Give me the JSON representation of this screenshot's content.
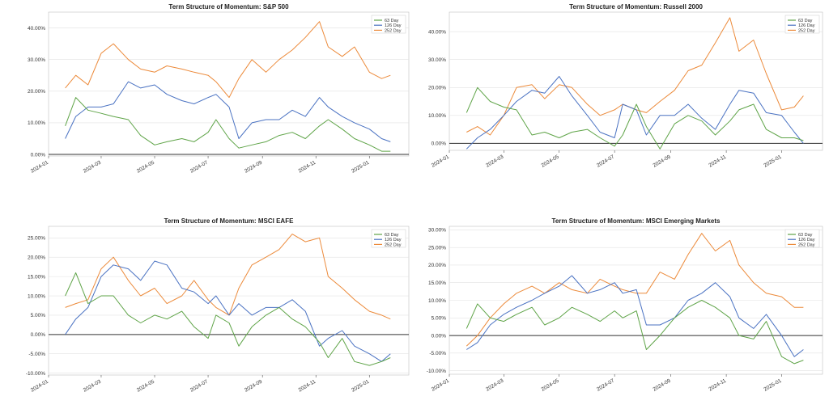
{
  "figure": {
    "colors": {
      "s63": "#5fa448",
      "s126": "#4a72c2",
      "s252": "#ec8a3a",
      "zero": "#333333",
      "grid": "#e2e2e2"
    }
  },
  "chart_data": [
    {
      "type": "line",
      "title": "Term Structure of Momentum: S&P 500",
      "x_tick_labels": [
        "2024-01",
        "2024-03",
        "2024-05",
        "2024-07",
        "2024-09",
        "2024-11",
        "2025-01"
      ],
      "y_tick_labels": [
        "0.00%",
        "10.00%",
        "20.00%",
        "30.00%",
        "40.00%"
      ],
      "ylim": [
        -0.5,
        45
      ],
      "grid": true,
      "legend_position": "top-right",
      "series": [
        {
          "name": "63 Day",
          "key": "s63",
          "x": [
            "2024-01-20",
            "2024-02-01",
            "2024-02-15",
            "2024-03-01",
            "2024-03-15",
            "2024-04-01",
            "2024-04-15",
            "2024-05-01",
            "2024-05-15",
            "2024-06-01",
            "2024-06-15",
            "2024-07-01",
            "2024-07-10",
            "2024-07-25",
            "2024-08-05",
            "2024-08-20",
            "2024-09-05",
            "2024-09-20",
            "2024-10-05",
            "2024-10-20",
            "2024-11-05",
            "2024-11-15",
            "2024-12-01",
            "2024-12-15",
            "2025-01-01",
            "2025-01-15",
            "2025-01-25"
          ],
          "values": [
            9,
            18,
            14,
            13,
            12,
            11,
            6,
            3,
            4,
            5,
            4,
            7,
            11,
            5,
            2,
            3,
            4,
            6,
            7,
            5,
            9,
            11,
            8,
            5,
            3,
            1,
            1
          ]
        },
        {
          "name": "126 Day",
          "key": "s126",
          "x": [
            "2024-01-20",
            "2024-02-01",
            "2024-02-15",
            "2024-03-01",
            "2024-03-15",
            "2024-04-01",
            "2024-04-15",
            "2024-05-01",
            "2024-05-15",
            "2024-06-01",
            "2024-06-15",
            "2024-07-01",
            "2024-07-10",
            "2024-07-25",
            "2024-08-05",
            "2024-08-20",
            "2024-09-05",
            "2024-09-20",
            "2024-10-05",
            "2024-10-20",
            "2024-11-05",
            "2024-11-15",
            "2024-12-01",
            "2024-12-15",
            "2025-01-01",
            "2025-01-15",
            "2025-01-25"
          ],
          "values": [
            5,
            12,
            15,
            15,
            16,
            23,
            21,
            22,
            19,
            17,
            16,
            18,
            19,
            15,
            5,
            10,
            11,
            11,
            14,
            12,
            18,
            15,
            12,
            10,
            8,
            5,
            4
          ]
        },
        {
          "name": "252 Day",
          "key": "s252",
          "x": [
            "2024-01-20",
            "2024-02-01",
            "2024-02-15",
            "2024-03-01",
            "2024-03-15",
            "2024-04-01",
            "2024-04-15",
            "2024-05-01",
            "2024-05-15",
            "2024-06-01",
            "2024-06-15",
            "2024-07-01",
            "2024-07-10",
            "2024-07-25",
            "2024-08-05",
            "2024-08-20",
            "2024-09-05",
            "2024-09-20",
            "2024-10-05",
            "2024-10-20",
            "2024-11-05",
            "2024-11-15",
            "2024-12-01",
            "2024-12-15",
            "2025-01-01",
            "2025-01-15",
            "2025-01-25"
          ],
          "values": [
            21,
            25,
            22,
            32,
            35,
            30,
            27,
            26,
            28,
            27,
            26,
            25,
            23,
            18,
            24,
            30,
            26,
            30,
            33,
            37,
            42,
            34,
            31,
            34,
            26,
            24,
            25
          ]
        }
      ]
    },
    {
      "type": "line",
      "title": "Term Structure of Momentum: Russell 2000",
      "x_tick_labels": [
        "2024-01",
        "2024-03",
        "2024-05",
        "2024-07",
        "2024-09",
        "2024-11",
        "2025-01"
      ],
      "y_tick_labels": [
        "0.00%",
        "10.00%",
        "20.00%",
        "30.00%",
        "40.00%"
      ],
      "ylim": [
        -2.5,
        47
      ],
      "grid": true,
      "legend_position": "top-right",
      "series": [
        {
          "name": "63 Day",
          "key": "s63",
          "x": [
            "2024-01-20",
            "2024-02-01",
            "2024-02-15",
            "2024-03-01",
            "2024-03-15",
            "2024-04-01",
            "2024-04-15",
            "2024-05-01",
            "2024-05-15",
            "2024-06-01",
            "2024-06-15",
            "2024-07-01",
            "2024-07-10",
            "2024-07-25",
            "2024-08-05",
            "2024-08-20",
            "2024-09-05",
            "2024-09-20",
            "2024-10-05",
            "2024-10-20",
            "2024-11-05",
            "2024-11-15",
            "2024-12-01",
            "2024-12-15",
            "2025-01-01",
            "2025-01-15",
            "2025-01-25"
          ],
          "values": [
            11,
            20,
            15,
            13,
            12,
            3,
            4,
            2,
            4,
            5,
            2,
            -1,
            3,
            14,
            6,
            -2,
            7,
            10,
            8,
            3,
            8,
            12,
            14,
            5,
            2,
            2,
            1
          ]
        },
        {
          "name": "126 Day",
          "key": "s126",
          "x": [
            "2024-01-20",
            "2024-02-01",
            "2024-02-15",
            "2024-03-01",
            "2024-03-15",
            "2024-04-01",
            "2024-04-15",
            "2024-05-01",
            "2024-05-15",
            "2024-06-01",
            "2024-06-15",
            "2024-07-01",
            "2024-07-10",
            "2024-07-25",
            "2024-08-05",
            "2024-08-20",
            "2024-09-05",
            "2024-09-20",
            "2024-10-05",
            "2024-10-20",
            "2024-11-05",
            "2024-11-15",
            "2024-12-01",
            "2024-12-15",
            "2025-01-01",
            "2025-01-15",
            "2025-01-25"
          ],
          "values": [
            -2,
            2,
            5,
            10,
            15,
            19,
            18,
            24,
            17,
            10,
            4,
            2,
            14,
            12,
            3,
            10,
            10,
            14,
            9,
            5,
            14,
            19,
            18,
            11,
            10,
            4,
            0
          ]
        },
        {
          "name": "252 Day",
          "key": "s252",
          "x": [
            "2024-01-20",
            "2024-02-01",
            "2024-02-15",
            "2024-03-01",
            "2024-03-15",
            "2024-04-01",
            "2024-04-15",
            "2024-05-01",
            "2024-05-15",
            "2024-06-01",
            "2024-06-15",
            "2024-07-01",
            "2024-07-10",
            "2024-07-25",
            "2024-08-05",
            "2024-08-20",
            "2024-09-05",
            "2024-09-20",
            "2024-10-05",
            "2024-10-20",
            "2024-11-05",
            "2024-11-15",
            "2024-12-01",
            "2024-12-15",
            "2025-01-01",
            "2025-01-15",
            "2025-01-25"
          ],
          "values": [
            4,
            6,
            3,
            10,
            20,
            21,
            16,
            21,
            20,
            14,
            10,
            12,
            14,
            12,
            11,
            15,
            19,
            26,
            28,
            36,
            45,
            33,
            37,
            25,
            12,
            13,
            17
          ]
        }
      ]
    },
    {
      "type": "line",
      "title": "Term Structure of Momentum: MSCI EAFE",
      "x_tick_labels": [
        "2024-01",
        "2024-03",
        "2024-05",
        "2024-07",
        "2024-09",
        "2024-11",
        "2025-01"
      ],
      "y_tick_labels": [
        "-10.00%",
        "-5.00%",
        "0.00%",
        "5.00%",
        "10.00%",
        "15.00%",
        "20.00%",
        "25.00%"
      ],
      "ylim": [
        -10.5,
        28
      ],
      "grid": true,
      "legend_position": "top-right",
      "series": [
        {
          "name": "63 Day",
          "key": "s63",
          "x": [
            "2024-01-20",
            "2024-02-01",
            "2024-02-15",
            "2024-03-01",
            "2024-03-15",
            "2024-04-01",
            "2024-04-15",
            "2024-05-01",
            "2024-05-15",
            "2024-06-01",
            "2024-06-15",
            "2024-07-01",
            "2024-07-10",
            "2024-07-25",
            "2024-08-05",
            "2024-08-20",
            "2024-09-05",
            "2024-09-20",
            "2024-10-05",
            "2024-10-20",
            "2024-11-05",
            "2024-11-15",
            "2024-12-01",
            "2024-12-15",
            "2025-01-01",
            "2025-01-15",
            "2025-01-25"
          ],
          "values": [
            10,
            16,
            8,
            10,
            10,
            5,
            3,
            5,
            4,
            6,
            2,
            -1,
            5,
            3,
            -3,
            2,
            5,
            7,
            4,
            2,
            -2,
            -6,
            -1,
            -7,
            -8,
            -7,
            -6
          ]
        },
        {
          "name": "126 Day",
          "key": "s126",
          "x": [
            "2024-01-20",
            "2024-02-01",
            "2024-02-15",
            "2024-03-01",
            "2024-03-15",
            "2024-04-01",
            "2024-04-15",
            "2024-05-01",
            "2024-05-15",
            "2024-06-01",
            "2024-06-15",
            "2024-07-01",
            "2024-07-10",
            "2024-07-25",
            "2024-08-05",
            "2024-08-20",
            "2024-09-05",
            "2024-09-20",
            "2024-10-05",
            "2024-10-20",
            "2024-11-05",
            "2024-11-15",
            "2024-12-01",
            "2024-12-15",
            "2025-01-01",
            "2025-01-15",
            "2025-01-25"
          ],
          "values": [
            0,
            4,
            7,
            15,
            18,
            17,
            14,
            19,
            18,
            12,
            11,
            8,
            10,
            5,
            8,
            5,
            7,
            7,
            9,
            6,
            -3,
            -1,
            1,
            -3,
            -5,
            -7,
            -5
          ]
        },
        {
          "name": "252 Day",
          "key": "s252",
          "x": [
            "2024-01-20",
            "2024-02-01",
            "2024-02-15",
            "2024-03-01",
            "2024-03-15",
            "2024-04-01",
            "2024-04-15",
            "2024-05-01",
            "2024-05-15",
            "2024-06-01",
            "2024-06-15",
            "2024-07-01",
            "2024-07-10",
            "2024-07-25",
            "2024-08-05",
            "2024-08-20",
            "2024-09-05",
            "2024-09-20",
            "2024-10-05",
            "2024-10-20",
            "2024-11-05",
            "2024-11-15",
            "2024-12-01",
            "2024-12-15",
            "2025-01-01",
            "2025-01-15",
            "2025-01-25"
          ],
          "values": [
            7,
            8,
            9,
            17,
            20,
            14,
            10,
            12,
            8,
            10,
            14,
            9,
            7,
            5,
            12,
            18,
            20,
            22,
            26,
            24,
            25,
            15,
            12,
            9,
            6,
            5,
            4
          ]
        }
      ]
    },
    {
      "type": "line",
      "title": "Term Structure of Momentum: MSCI Emerging Markets",
      "x_tick_labels": [
        "2024-01",
        "2024-03",
        "2024-05",
        "2024-07",
        "2024-09",
        "2024-11",
        "2025-01"
      ],
      "y_tick_labels": [
        "-10.00%",
        "-5.00%",
        "0.00%",
        "5.00%",
        "10.00%",
        "15.00%",
        "20.00%",
        "25.00%",
        "30.00%"
      ],
      "ylim": [
        -11,
        31
      ],
      "grid": true,
      "legend_position": "top-right",
      "series": [
        {
          "name": "63 Day",
          "key": "s63",
          "x": [
            "2024-01-20",
            "2024-02-01",
            "2024-02-15",
            "2024-03-01",
            "2024-03-15",
            "2024-04-01",
            "2024-04-15",
            "2024-05-01",
            "2024-05-15",
            "2024-06-01",
            "2024-06-15",
            "2024-07-01",
            "2024-07-10",
            "2024-07-25",
            "2024-08-05",
            "2024-08-20",
            "2024-09-05",
            "2024-09-20",
            "2024-10-05",
            "2024-10-20",
            "2024-11-05",
            "2024-11-15",
            "2024-12-01",
            "2024-12-15",
            "2025-01-01",
            "2025-01-15",
            "2025-01-25"
          ],
          "values": [
            2,
            9,
            5,
            4,
            6,
            8,
            3,
            5,
            8,
            6,
            4,
            7,
            5,
            7,
            -4,
            0,
            5,
            8,
            10,
            8,
            5,
            0,
            -1,
            4,
            -6,
            -8,
            -7
          ]
        },
        {
          "name": "126 Day",
          "key": "s126",
          "x": [
            "2024-01-20",
            "2024-02-01",
            "2024-02-15",
            "2024-03-01",
            "2024-03-15",
            "2024-04-01",
            "2024-04-15",
            "2024-05-01",
            "2024-05-15",
            "2024-06-01",
            "2024-06-15",
            "2024-07-01",
            "2024-07-10",
            "2024-07-25",
            "2024-08-05",
            "2024-08-20",
            "2024-09-05",
            "2024-09-20",
            "2024-10-05",
            "2024-10-20",
            "2024-11-05",
            "2024-11-15",
            "2024-12-01",
            "2024-12-15",
            "2025-01-01",
            "2025-01-15",
            "2025-01-25"
          ],
          "values": [
            -4,
            -2,
            3,
            6,
            8,
            10,
            12,
            14,
            17,
            12,
            13,
            15,
            12,
            13,
            3,
            3,
            5,
            10,
            12,
            15,
            11,
            5,
            2,
            6,
            0,
            -6,
            -4
          ]
        },
        {
          "name": "252 Day",
          "key": "s252",
          "x": [
            "2024-01-20",
            "2024-02-01",
            "2024-02-15",
            "2024-03-01",
            "2024-03-15",
            "2024-04-01",
            "2024-04-15",
            "2024-05-01",
            "2024-05-15",
            "2024-06-01",
            "2024-06-15",
            "2024-07-01",
            "2024-07-10",
            "2024-07-25",
            "2024-08-05",
            "2024-08-20",
            "2024-09-05",
            "2024-09-20",
            "2024-10-05",
            "2024-10-20",
            "2024-11-05",
            "2024-11-15",
            "2024-12-01",
            "2024-12-15",
            "2025-01-01",
            "2025-01-15",
            "2025-01-25"
          ],
          "values": [
            -3,
            0,
            5,
            9,
            12,
            14,
            12,
            15,
            13,
            12,
            16,
            14,
            13,
            12,
            12,
            18,
            16,
            23,
            29,
            24,
            27,
            20,
            15,
            12,
            11,
            8,
            8
          ]
        }
      ]
    }
  ]
}
